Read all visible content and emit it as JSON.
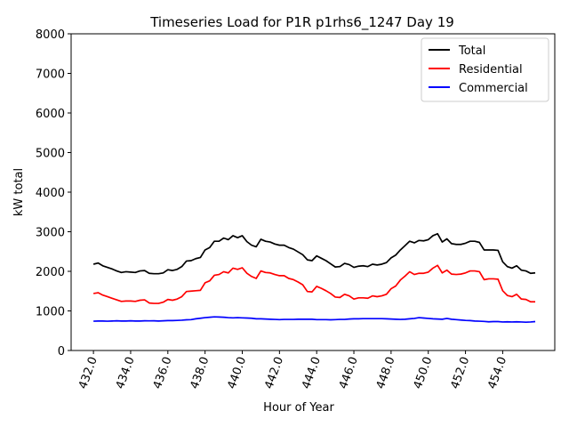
{
  "chart_data": {
    "type": "line",
    "title": "Timeseries Load for P1R p1rhs6_1247  Day 19",
    "xlabel": "Hour of Year",
    "ylabel": "kW total",
    "xlim": [
      430.8,
      456.8
    ],
    "ylim": [
      0,
      8000
    ],
    "xticks": [
      432,
      434,
      436,
      438,
      440,
      442,
      444,
      446,
      448,
      450,
      452,
      454
    ],
    "xtick_labels": [
      "432.0",
      "434.0",
      "436.0",
      "438.0",
      "440.0",
      "442.0",
      "444.0",
      "446.0",
      "448.0",
      "450.0",
      "452.0",
      "454.0"
    ],
    "yticks": [
      0,
      1000,
      2000,
      3000,
      4000,
      5000,
      6000,
      7000,
      8000
    ],
    "ytick_labels": [
      "0",
      "1000",
      "2000",
      "3000",
      "4000",
      "5000",
      "6000",
      "7000",
      "8000"
    ],
    "legend_position": "top-right",
    "series": [
      {
        "name": "Total",
        "color": "#000000",
        "x": [
          432,
          432.25,
          432.5,
          432.75,
          433,
          433.25,
          433.5,
          433.75,
          434,
          434.25,
          434.5,
          434.75,
          435,
          435.25,
          435.5,
          435.75,
          436,
          436.25,
          436.5,
          436.75,
          437,
          437.25,
          437.5,
          437.75,
          438,
          438.25,
          438.5,
          438.75,
          439,
          439.25,
          439.5,
          439.75,
          440,
          440.25,
          440.5,
          440.75,
          441,
          441.25,
          441.5,
          441.75,
          442,
          442.25,
          442.5,
          442.75,
          443,
          443.25,
          443.5,
          443.75,
          444,
          444.25,
          444.5,
          444.75,
          445,
          445.25,
          445.5,
          445.75,
          446,
          446.25,
          446.5,
          446.75,
          447,
          447.25,
          447.5,
          447.75,
          448,
          448.25,
          448.5,
          448.75,
          449,
          449.25,
          449.5,
          449.75,
          450,
          450.25,
          450.5,
          450.75,
          451,
          451.25,
          451.5,
          451.75,
          452,
          452.25,
          452.5,
          452.75,
          453,
          453.25,
          453.5,
          453.75,
          454,
          454.25,
          454.5,
          454.75,
          455,
          455.25,
          455.5,
          455.75
        ],
        "values": [
          2180,
          2210,
          2140,
          2100,
          2060,
          2010,
          1970,
          1990,
          1980,
          1970,
          2010,
          2020,
          1950,
          1940,
          1940,
          1960,
          2040,
          2020,
          2050,
          2120,
          2260,
          2270,
          2320,
          2350,
          2540,
          2600,
          2760,
          2760,
          2840,
          2800,
          2900,
          2850,
          2900,
          2750,
          2660,
          2620,
          2810,
          2760,
          2740,
          2690,
          2660,
          2660,
          2600,
          2560,
          2490,
          2420,
          2290,
          2270,
          2390,
          2330,
          2270,
          2190,
          2110,
          2120,
          2200,
          2170,
          2100,
          2130,
          2140,
          2120,
          2180,
          2160,
          2180,
          2220,
          2340,
          2410,
          2540,
          2650,
          2760,
          2720,
          2780,
          2770,
          2800,
          2900,
          2950,
          2740,
          2820,
          2700,
          2680,
          2680,
          2710,
          2760,
          2760,
          2730,
          2540,
          2540,
          2540,
          2530,
          2240,
          2120,
          2080,
          2140,
          2030,
          2010,
          1950,
          1960
        ]
      },
      {
        "name": "Residential",
        "color": "#ff0000",
        "x": [
          432,
          432.25,
          432.5,
          432.75,
          433,
          433.25,
          433.5,
          433.75,
          434,
          434.25,
          434.5,
          434.75,
          435,
          435.25,
          435.5,
          435.75,
          436,
          436.25,
          436.5,
          436.75,
          437,
          437.25,
          437.5,
          437.75,
          438,
          438.25,
          438.5,
          438.75,
          439,
          439.25,
          439.5,
          439.75,
          440,
          440.25,
          440.5,
          440.75,
          441,
          441.25,
          441.5,
          441.75,
          442,
          442.25,
          442.5,
          442.75,
          443,
          443.25,
          443.5,
          443.75,
          444,
          444.25,
          444.5,
          444.75,
          445,
          445.25,
          445.5,
          445.75,
          446,
          446.25,
          446.5,
          446.75,
          447,
          447.25,
          447.5,
          447.75,
          448,
          448.25,
          448.5,
          448.75,
          449,
          449.25,
          449.5,
          449.75,
          450,
          450.25,
          450.5,
          450.75,
          451,
          451.25,
          451.5,
          451.75,
          452,
          452.25,
          452.5,
          452.75,
          453,
          453.25,
          453.5,
          453.75,
          454,
          454.25,
          454.5,
          454.75,
          455,
          455.25,
          455.5,
          455.75
        ],
        "values": [
          1440,
          1460,
          1400,
          1360,
          1320,
          1280,
          1240,
          1250,
          1250,
          1240,
          1270,
          1280,
          1200,
          1190,
          1190,
          1220,
          1290,
          1270,
          1300,
          1360,
          1490,
          1500,
          1510,
          1520,
          1710,
          1760,
          1900,
          1920,
          1990,
          1960,
          2080,
          2050,
          2090,
          1950,
          1870,
          1820,
          2010,
          1970,
          1960,
          1920,
          1890,
          1890,
          1820,
          1790,
          1730,
          1660,
          1490,
          1480,
          1620,
          1570,
          1510,
          1440,
          1350,
          1340,
          1420,
          1380,
          1300,
          1330,
          1330,
          1320,
          1380,
          1360,
          1380,
          1420,
          1560,
          1630,
          1780,
          1880,
          1990,
          1920,
          1950,
          1950,
          1980,
          2080,
          2150,
          1960,
          2030,
          1930,
          1920,
          1930,
          1960,
          2010,
          2010,
          1990,
          1790,
          1810,
          1810,
          1800,
          1510,
          1390,
          1360,
          1420,
          1300,
          1290,
          1230,
          1230
        ]
      },
      {
        "name": "Commercial",
        "color": "#0000ff",
        "x": [
          432,
          432.25,
          432.5,
          432.75,
          433,
          433.25,
          433.5,
          433.75,
          434,
          434.25,
          434.5,
          434.75,
          435,
          435.25,
          435.5,
          435.75,
          436,
          436.25,
          436.5,
          436.75,
          437,
          437.25,
          437.5,
          437.75,
          438,
          438.25,
          438.5,
          438.75,
          439,
          439.25,
          439.5,
          439.75,
          440,
          440.25,
          440.5,
          440.75,
          441,
          441.25,
          441.5,
          441.75,
          442,
          442.25,
          442.5,
          442.75,
          443,
          443.25,
          443.5,
          443.75,
          444,
          444.25,
          444.5,
          444.75,
          445,
          445.25,
          445.5,
          445.75,
          446,
          446.25,
          446.5,
          446.75,
          447,
          447.25,
          447.5,
          447.75,
          448,
          448.25,
          448.5,
          448.75,
          449,
          449.25,
          449.5,
          449.75,
          450,
          450.25,
          450.5,
          450.75,
          451,
          451.25,
          451.5,
          451.75,
          452,
          452.25,
          452.5,
          452.75,
          453,
          453.25,
          453.5,
          453.75,
          454,
          454.25,
          454.5,
          454.75,
          455,
          455.25,
          455.5,
          455.75
        ],
        "values": [
          740,
          745,
          745,
          740,
          745,
          750,
          745,
          745,
          750,
          745,
          745,
          750,
          748,
          750,
          745,
          750,
          755,
          755,
          760,
          765,
          775,
          780,
          800,
          815,
          830,
          840,
          850,
          845,
          840,
          830,
          825,
          830,
          825,
          820,
          815,
          800,
          800,
          795,
          790,
          785,
          780,
          785,
          785,
          785,
          790,
          790,
          790,
          790,
          780,
          780,
          780,
          775,
          780,
          785,
          785,
          795,
          800,
          800,
          805,
          805,
          805,
          805,
          805,
          800,
          795,
          790,
          785,
          790,
          800,
          810,
          830,
          820,
          810,
          800,
          795,
          790,
          810,
          790,
          780,
          770,
          760,
          755,
          745,
          740,
          735,
          725,
          730,
          730,
          720,
          725,
          720,
          725,
          720,
          715,
          720,
          730
        ]
      }
    ]
  }
}
